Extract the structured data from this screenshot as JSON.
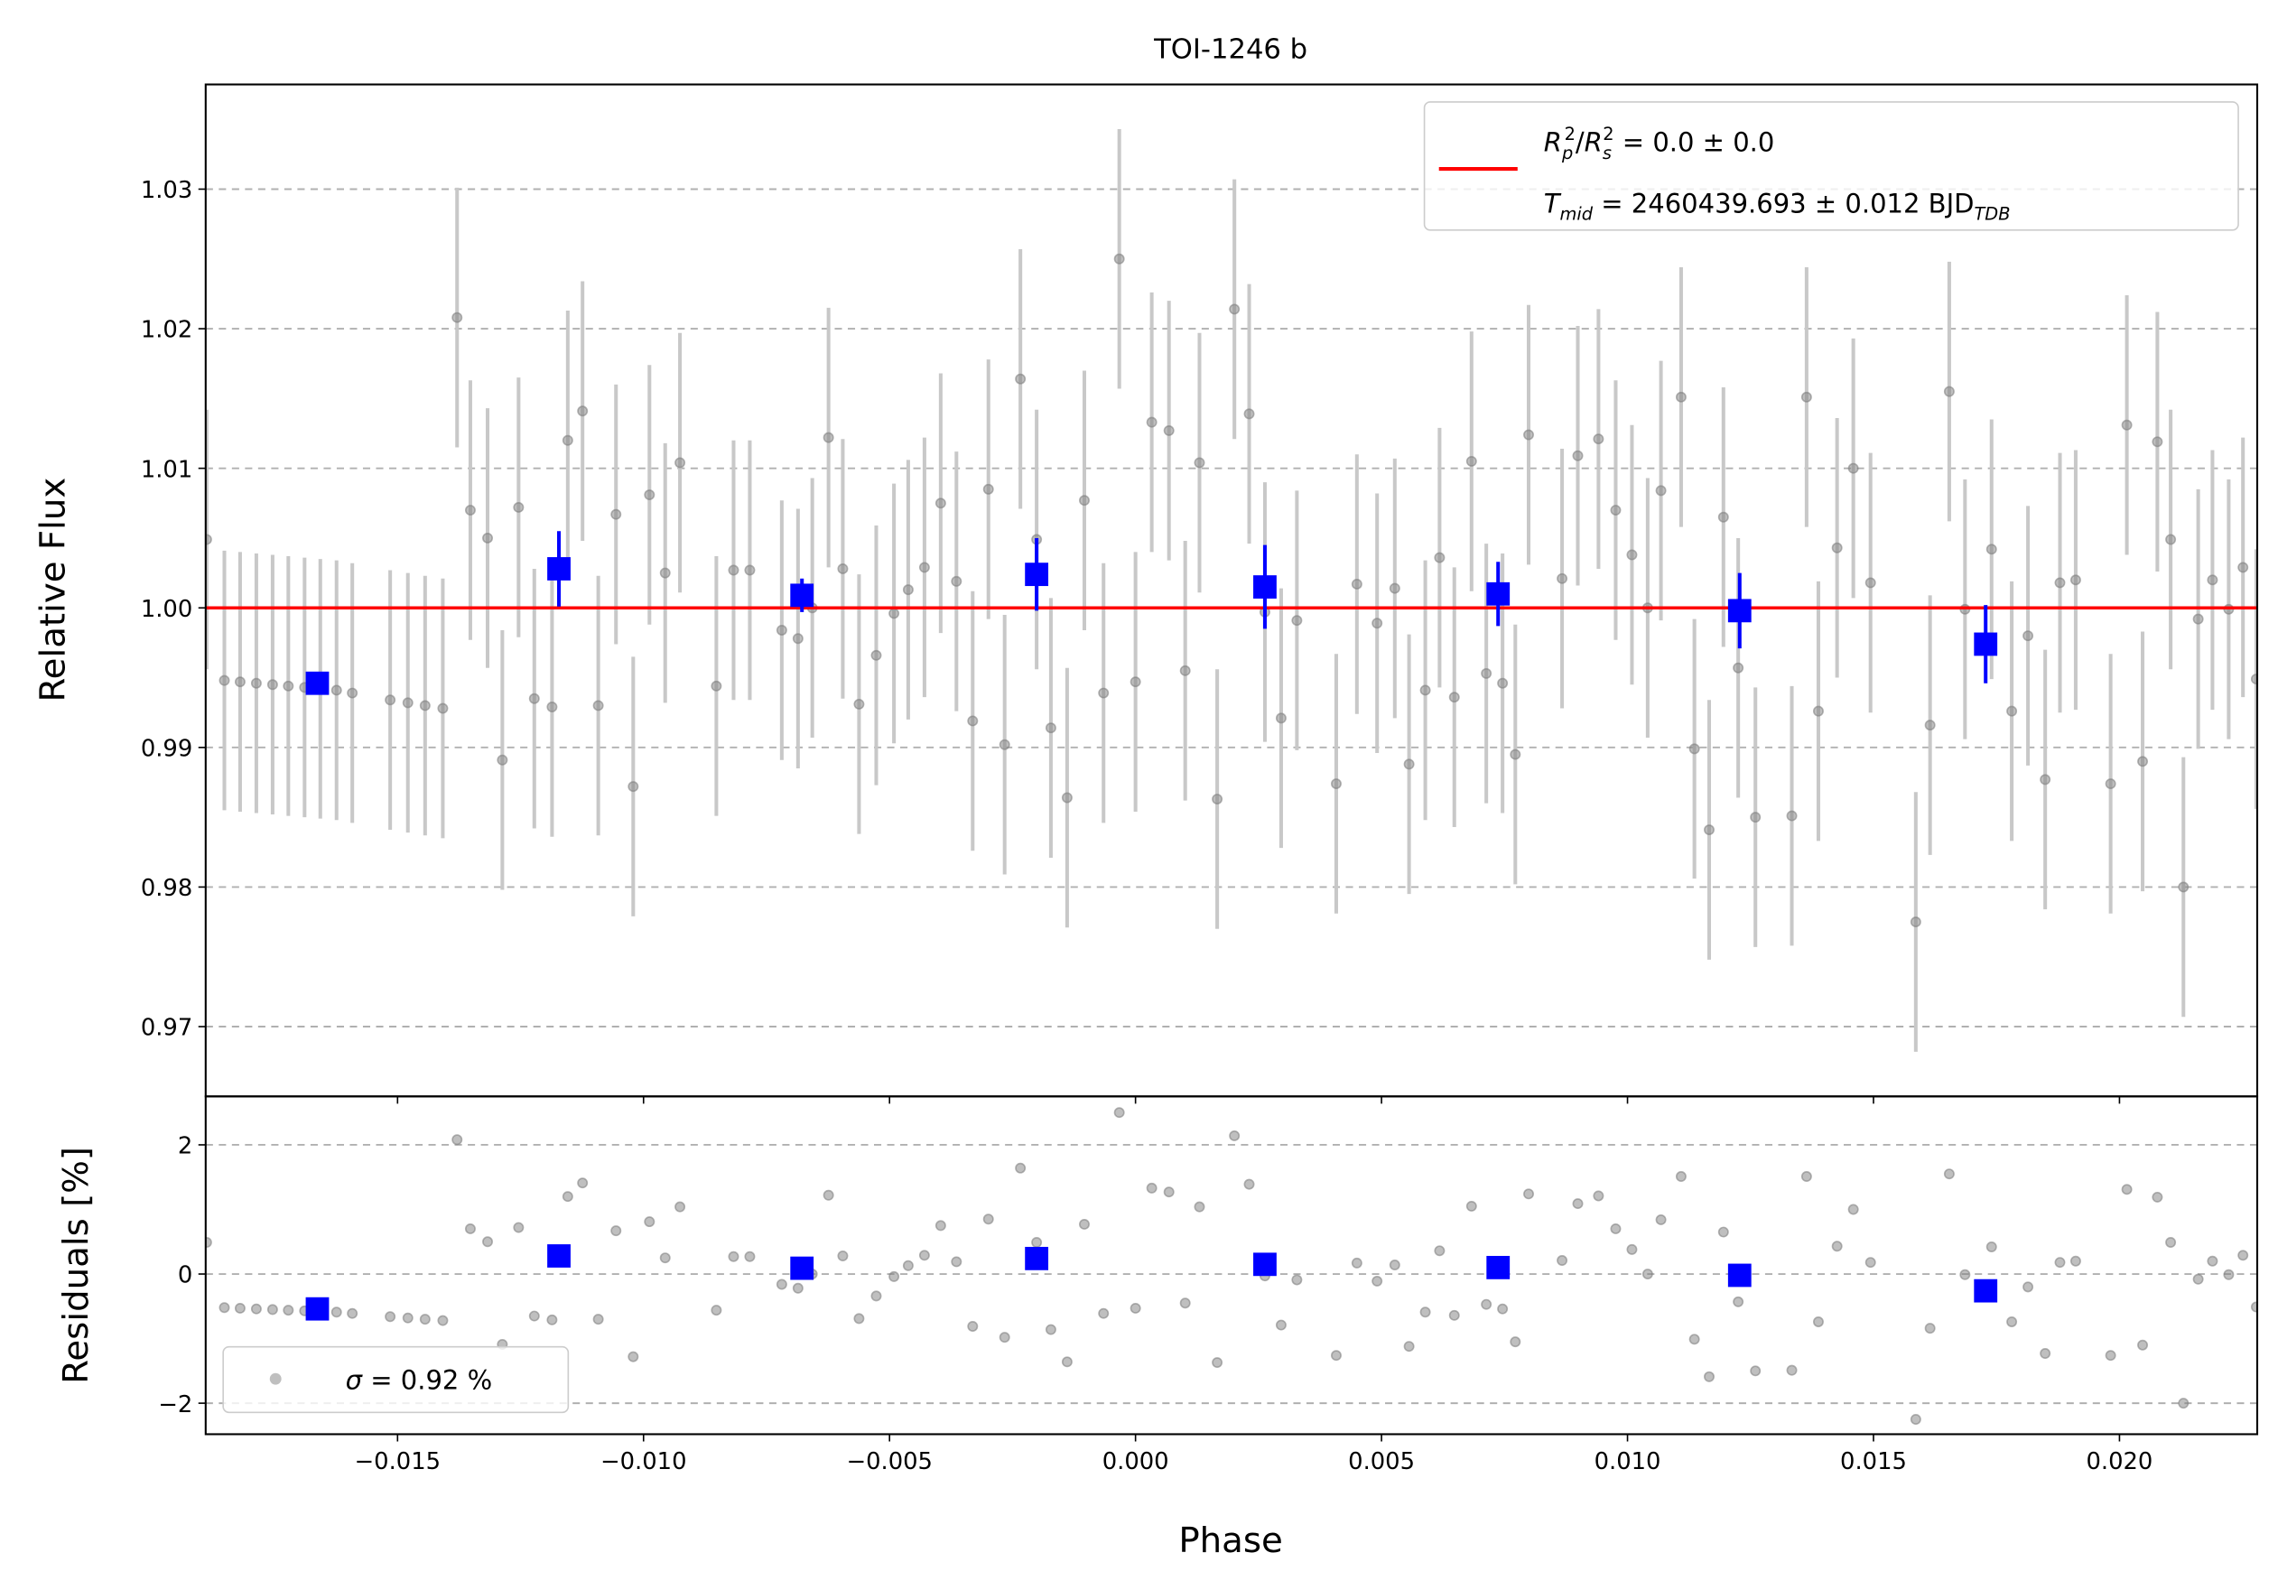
{
  "chart_data": [
    {
      "type": "scatter",
      "title": "TOI-1246 b",
      "ylabel": "Relative Flux",
      "x": [
        -0.01888,
        -0.01852,
        -0.0182,
        -0.01787,
        -0.01754,
        -0.01722,
        -0.01689,
        -0.01657,
        -0.01624,
        -0.01592,
        -0.01515,
        -0.01479,
        -0.01444,
        -0.01408,
        -0.01379,
        -0.01352,
        -0.01317,
        -0.01287,
        -0.01254,
        -0.01222,
        -0.01186,
        -0.01154,
        -0.01124,
        -0.01092,
        -0.01056,
        -0.01021,
        -0.00988,
        -0.00956,
        -0.00926,
        -0.00852,
        -0.00817,
        -0.00784,
        -0.00719,
        -0.00686,
        -0.00657,
        -0.00624,
        -0.00595,
        -0.00562,
        -0.00527,
        -0.00491,
        -0.00462,
        -0.00429,
        -0.00396,
        -0.00364,
        -0.00331,
        -0.00299,
        -0.00266,
        -0.00234,
        -0.00201,
        -0.00172,
        -0.00139,
        -0.00104,
        -0.00065,
        -0.00033,
        0,
        0.00033,
        0.00068,
        0.00101,
        0.0013,
        0.00166,
        0.00201,
        0.00231,
        0.00263,
        0.00296,
        0.00328,
        0.00408,
        0.0045,
        0.00491,
        0.00527,
        0.00556,
        0.00589,
        0.00618,
        0.00648,
        0.00683,
        0.00713,
        0.00746,
        0.00772,
        0.00799,
        0.00867,
        0.00899,
        0.00941,
        0.00976,
        0.01009,
        0.01041,
        0.01068,
        0.01109,
        0.01136,
        0.01166,
        0.01195,
        0.01225,
        0.0126,
        0.01334,
        0.01364,
        0.01388,
        0.01426,
        0.01459,
        0.01494,
        0.01586,
        0.01615,
        0.01654,
        0.01686,
        0.0174,
        0.01781,
        0.01814,
        0.01849,
        0.01879,
        0.01911,
        0.01982,
        0.02015,
        0.02047,
        0.02077,
        0.02104,
        0.0213,
        0.0216,
        0.02189,
        0.02222,
        0.02251,
        0.02278
      ],
      "values": [
        1.0049,
        0.9948,
        0.9947,
        0.9946,
        0.9945,
        0.9944,
        0.9943,
        0.9942,
        0.9941,
        0.9939,
        0.9934,
        0.9932,
        0.993,
        0.9928,
        1.0208,
        1.007,
        1.005,
        0.9891,
        1.0072,
        0.9935,
        0.9929,
        1.012,
        1.0141,
        0.993,
        1.0067,
        0.9872,
        1.0081,
        1.0025,
        1.0104,
        0.9944,
        1.0027,
        1.0027,
        0.9984,
        0.9978,
        1.0,
        1.0122,
        1.0028,
        0.9931,
        0.9966,
        0.9996,
        1.0013,
        1.0029,
        1.0075,
        1.0019,
        0.9919,
        1.0085,
        0.9902,
        1.0164,
        1.0049,
        0.9914,
        0.9864,
        1.0077,
        0.9939,
        1.025,
        0.9947,
        1.0133,
        1.0127,
        0.9955,
        1.0104,
        0.9863,
        1.0214,
        1.0139,
        0.9997,
        0.9921,
        0.9991,
        0.9874,
        1.0017,
        0.9989,
        1.0014,
        0.9888,
        0.9941,
        1.0036,
        0.9936,
        1.0105,
        0.9953,
        0.9946,
        0.9895,
        1.0124,
        1.0021,
        1.0109,
        1.0121,
        1.007,
        1.0038,
        1.0,
        1.0084,
        1.0151,
        0.9899,
        0.9841,
        1.0065,
        0.9957,
        0.985,
        0.9851,
        1.0151,
        0.9926,
        1.0043,
        1.01,
        1.0018,
        0.9775,
        0.9916,
        1.0155,
        0.9999,
        1.0042,
        0.9926,
        0.998,
        0.9877,
        1.0018,
        1.002,
        0.9874,
        1.0131,
        0.989,
        1.0119,
        1.0049,
        0.98,
        0.9992,
        1.002,
        0.9999,
        1.0029,
        0.9949
      ],
      "error": 0.0093,
      "color": "gray",
      "error_color": "#c8c8c8",
      "binned": {
        "x": [
          -0.01663,
          -0.01172,
          -0.00678,
          -0.00201,
          0.00263,
          0.00737,
          0.01228,
          0.01728
        ],
        "values": [
          0.9946,
          1.0028,
          1.0009,
          1.0024,
          1.0015,
          1.001,
          0.9998,
          0.9974
        ],
        "errors": [
          0.0005,
          0.0027,
          0.0012,
          0.0026,
          0.003,
          0.0023,
          0.0027,
          0.0028
        ],
        "color": "blue"
      },
      "model": {
        "value": 1.0,
        "color": "red"
      },
      "legend": [
        [
          "R",
          "p",
          "2",
          "/",
          "R",
          "s",
          "2",
          " = 0.0 ± 0.0"
        ],
        [
          "T",
          "mid",
          " = 2460439.693 ± 0.012 BJD",
          "TDB"
        ]
      ],
      "xlim": [
        -0.0189,
        0.0228
      ],
      "ylim": [
        0.965,
        1.0375
      ],
      "yticks": [
        0.97,
        0.98,
        0.99,
        {
          "value": 1,
          "label": "1.00"
        },
        1.01,
        1.02,
        1.03
      ],
      "grid": true
    },
    {
      "type": "scatter",
      "ylabel": "Residuals [%]",
      "xlabel": "Phase",
      "values": [
        0.49,
        -0.52,
        -0.53,
        -0.54,
        -0.55,
        -0.56,
        -0.57,
        -0.58,
        -0.59,
        -0.61,
        -0.66,
        -0.68,
        -0.7,
        -0.72,
        2.08,
        0.7,
        0.5,
        -1.09,
        0.72,
        -0.65,
        -0.71,
        1.2,
        1.41,
        -0.7,
        0.67,
        -1.28,
        0.81,
        0.25,
        1.04,
        -0.56,
        0.27,
        0.27,
        -0.16,
        -0.22,
        0,
        1.22,
        0.28,
        -0.69,
        -0.34,
        -0.04,
        0.13,
        0.29,
        0.75,
        0.19,
        -0.81,
        0.85,
        -0.98,
        1.64,
        0.49,
        -0.86,
        -1.36,
        0.77,
        -0.61,
        2.5,
        -0.53,
        1.33,
        1.27,
        -0.45,
        1.04,
        -1.37,
        2.14,
        1.39,
        -0.03,
        -0.79,
        -0.09,
        -1.26,
        0.17,
        -0.11,
        0.14,
        -1.12,
        -0.59,
        0.36,
        -0.64,
        1.05,
        -0.47,
        -0.54,
        -1.05,
        1.24,
        0.21,
        1.09,
        1.21,
        0.7,
        0.38,
        0,
        0.84,
        1.51,
        -1.01,
        -1.59,
        0.65,
        -0.43,
        -1.5,
        -1.49,
        1.51,
        -0.74,
        0.43,
        1.0,
        0.18,
        -2.25,
        -0.84,
        1.55,
        -0.01,
        0.42,
        -0.74,
        -0.2,
        -1.23,
        0.18,
        0.2,
        -1.26,
        1.31,
        -1.1,
        1.19,
        0.49,
        -2.0,
        -0.08,
        0.2,
        -0.01,
        0.29,
        -0.51
      ],
      "color": "gray",
      "binned": {
        "values": [
          -0.54,
          0.28,
          0.09,
          0.24,
          0.15,
          0.1,
          -0.02,
          -0.26
        ],
        "color": "blue"
      },
      "legend": [
        [
          "σ",
          " = 0.92 %"
        ]
      ],
      "xlim": [
        -0.0189,
        0.0228
      ],
      "ylim": [
        -2.48,
        2.75
      ],
      "yticks": [
        {
          "value": -2,
          "label": "−2"
        },
        0,
        2
      ],
      "xticks": [
        {
          "value": -0.015,
          "label": "−0.015"
        },
        {
          "value": -0.01,
          "label": "−0.010"
        },
        {
          "value": -0.005,
          "label": "−0.005"
        },
        {
          "value": 0,
          "label": "0.000"
        },
        0.005,
        {
          "value": 0.01,
          "label": "0.010"
        },
        0.015,
        {
          "value": 0.02,
          "label": "0.020"
        }
      ],
      "grid": true
    }
  ]
}
